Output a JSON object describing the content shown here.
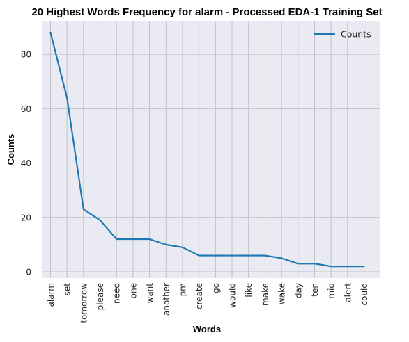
{
  "chart_data": {
    "type": "line",
    "title": "20 Highest Words Frequency for alarm - Processed EDA-1 Training Set",
    "xlabel": "Words",
    "ylabel": "Counts",
    "categories": [
      "alarm",
      "set",
      "tomorrow",
      "please",
      "need",
      "one",
      "want",
      "another",
      "pm",
      "create",
      "go",
      "would",
      "like",
      "make",
      "wake",
      "day",
      "ten",
      "mid",
      "alert",
      "could"
    ],
    "series": [
      {
        "name": "Counts",
        "values": [
          88,
          64,
          23,
          19,
          12,
          12,
          12,
          10,
          9,
          6,
          6,
          6,
          6,
          6,
          5,
          3,
          3,
          2,
          2,
          2
        ]
      }
    ],
    "ylim": [
      -2.3,
      92.3
    ],
    "yticks": [
      0,
      20,
      40,
      60,
      80
    ],
    "grid": true,
    "legend_position": "top-right",
    "colors": {
      "line": "#1f77b4",
      "plot_bg": "#eaeaf2",
      "grid": "#c0c0c8"
    }
  }
}
